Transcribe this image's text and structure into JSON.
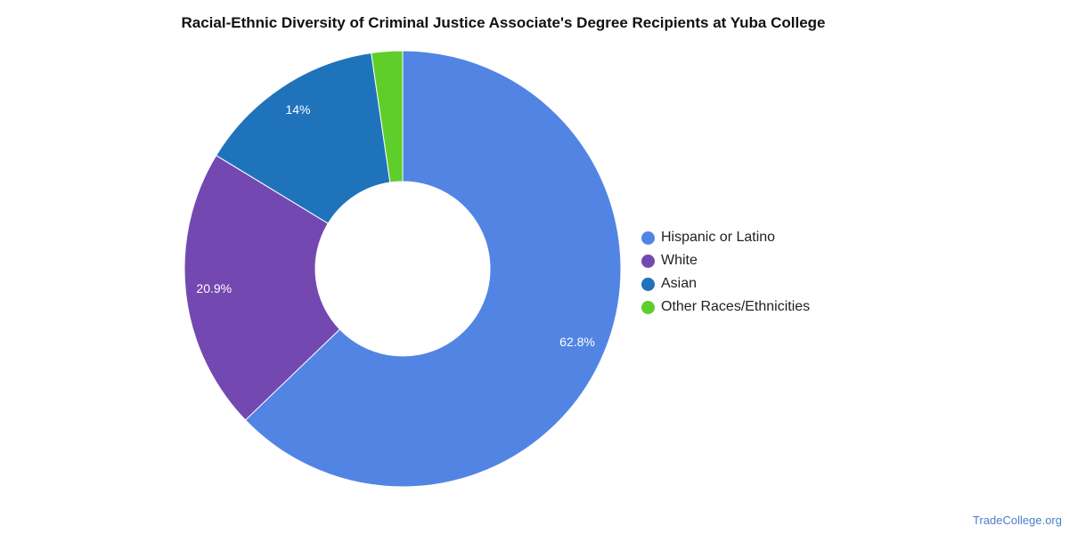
{
  "chart_data": {
    "type": "pie",
    "title": "Racial-Ethnic Diversity of Criminal Justice Associate's Degree Recipients at Yuba College",
    "donut": true,
    "legend_position": "right",
    "categories": [
      "Hispanic or Latino",
      "White",
      "Asian",
      "Other Races/Ethnicities"
    ],
    "values": [
      62.8,
      20.9,
      14.0,
      2.3
    ],
    "data_labels": [
      "62.8%",
      "20.9%",
      "14%",
      ""
    ],
    "colors": [
      "#5285e3",
      "#7448b1",
      "#1f73bb",
      "#5fce2a"
    ]
  },
  "source": "TradeCollege.org"
}
